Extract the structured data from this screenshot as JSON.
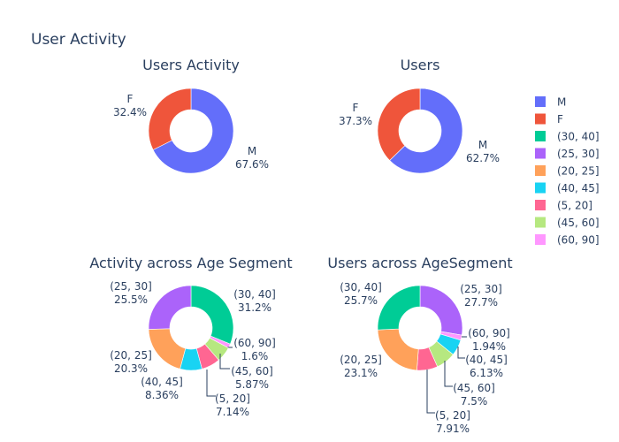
{
  "figure": {
    "title": "User Activity"
  },
  "legend": {
    "placement": "right",
    "items": [
      {
        "label": "M",
        "color": "#636efa"
      },
      {
        "label": "F",
        "color": "#ef553b"
      },
      {
        "label": "(30, 40]",
        "color": "#00cc96"
      },
      {
        "label": "(25, 30]",
        "color": "#ab63fa"
      },
      {
        "label": "(20, 25]",
        "color": "#ffa15a"
      },
      {
        "label": "(40, 45]",
        "color": "#19d3f3"
      },
      {
        "label": "(5, 20]",
        "color": "#ff6692"
      },
      {
        "label": "(45, 60]",
        "color": "#b6e880"
      },
      {
        "label": "(60, 90]",
        "color": "#ff97ff"
      }
    ]
  },
  "chart_data": [
    {
      "type": "pie",
      "hole": 0.5,
      "title": "Users Activity",
      "slices": [
        {
          "label": "M",
          "percent": 67.6,
          "text": "67.6%"
        },
        {
          "label": "F",
          "percent": 32.4,
          "text": "32.4%"
        }
      ]
    },
    {
      "type": "pie",
      "hole": 0.5,
      "title": "Users",
      "slices": [
        {
          "label": "M",
          "percent": 62.7,
          "text": "62.7%"
        },
        {
          "label": "F",
          "percent": 37.3,
          "text": "37.3%"
        }
      ]
    },
    {
      "type": "pie",
      "hole": 0.5,
      "title": "Activity across Age Segment",
      "slices": [
        {
          "label": "(30, 40]",
          "percent": 31.2,
          "text": "31.2%"
        },
        {
          "label": "(60, 90]",
          "percent": 1.6,
          "text": "1.6%"
        },
        {
          "label": "(45, 60]",
          "percent": 5.87,
          "text": "5.87%"
        },
        {
          "label": "(5, 20]",
          "percent": 7.14,
          "text": "7.14%"
        },
        {
          "label": "(40, 45]",
          "percent": 8.36,
          "text": "8.36%"
        },
        {
          "label": "(20, 25]",
          "percent": 20.3,
          "text": "20.3%"
        },
        {
          "label": "(25, 30]",
          "percent": 25.5,
          "text": "25.5%"
        }
      ]
    },
    {
      "type": "pie",
      "hole": 0.5,
      "title": "Users across AgeSegment",
      "slices": [
        {
          "label": "(25, 30]",
          "percent": 27.7,
          "text": "27.7%"
        },
        {
          "label": "(60, 90]",
          "percent": 1.94,
          "text": "1.94%"
        },
        {
          "label": "(40, 45]",
          "percent": 6.13,
          "text": "6.13%"
        },
        {
          "label": "(45, 60]",
          "percent": 7.5,
          "text": "7.5%"
        },
        {
          "label": "(5, 20]",
          "percent": 7.91,
          "text": "7.91%"
        },
        {
          "label": "(20, 25]",
          "percent": 23.1,
          "text": "23.1%"
        },
        {
          "label": "(30, 40]",
          "percent": 25.7,
          "text": "25.7%"
        }
      ]
    }
  ]
}
